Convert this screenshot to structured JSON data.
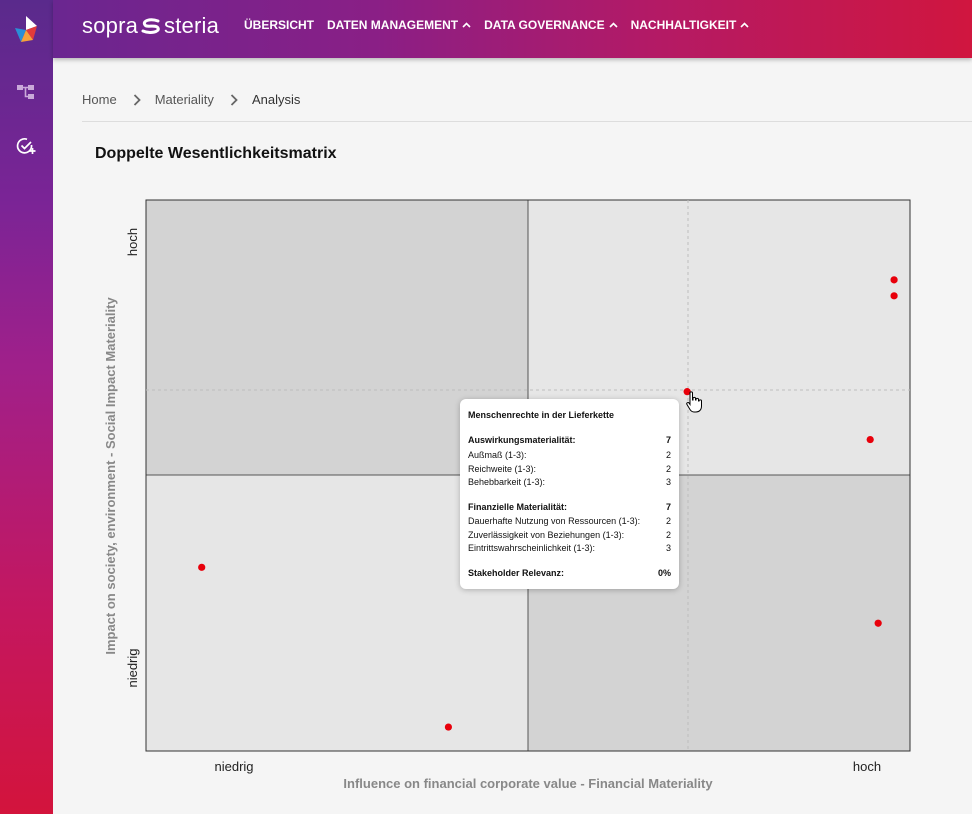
{
  "app": {
    "brand_left": "sopra",
    "brand_right": "steria"
  },
  "header": {
    "nav": [
      {
        "label": "ÜBERSICHT"
      },
      {
        "label": "DATEN MANAGEMENT"
      },
      {
        "label": "DATA GOVERNANCE"
      },
      {
        "label": "NACHHALTIGKEIT"
      }
    ]
  },
  "breadcrumb": {
    "items": [
      "Home",
      "Materiality",
      "Analysis"
    ]
  },
  "page": {
    "title": "Doppelte Wesentlichkeitsmatrix"
  },
  "chart_data": {
    "type": "scatter",
    "title": "Doppelte Wesentlichkeitsmatrix",
    "xlabel": "Influence on financial corporate value - Financial Materiality",
    "ylabel": "Impact on society, environment - Social Impact Materiality",
    "x_ticks": [
      "niedrig",
      "hoch"
    ],
    "y_ticks": [
      "niedrig",
      "hoch"
    ],
    "xlim": [
      0,
      9.6
    ],
    "ylim": [
      0,
      6.9
    ],
    "point_color": "#e8000b",
    "points": [
      {
        "x": 0.7,
        "y": 2.3
      },
      {
        "x": 3.8,
        "y": 0.3
      },
      {
        "x": 6.8,
        "y": 4.5
      },
      {
        "x": 9.1,
        "y": 3.9
      },
      {
        "x": 9.4,
        "y": 5.7
      },
      {
        "x": 9.4,
        "y": 5.9
      },
      {
        "x": 9.2,
        "y": 1.6
      }
    ]
  },
  "tooltip": {
    "title": "Menschenrechte in der Lieferkette",
    "impact_label": "Auswirkungsmaterialität:",
    "impact_value": "7",
    "impact_items": [
      {
        "label": "Außmaß (1-3):",
        "value": "2"
      },
      {
        "label": "Reichweite (1-3):",
        "value": "2"
      },
      {
        "label": "Behebbarkeit (1-3):",
        "value": "3"
      }
    ],
    "fin_label": "Finanzielle Materialität:",
    "fin_value": "7",
    "fin_items": [
      {
        "label": "Dauerhafte Nutzung von Ressourcen (1-3):",
        "value": "2"
      },
      {
        "label": "Zuverlässigkeit von Beziehungen (1-3):",
        "value": "2"
      },
      {
        "label": "Eintrittswahrscheinlichkeit (1-3):",
        "value": "3"
      }
    ],
    "stakeholder_label": "Stakeholder Relevanz:",
    "stakeholder_value": "0%"
  }
}
